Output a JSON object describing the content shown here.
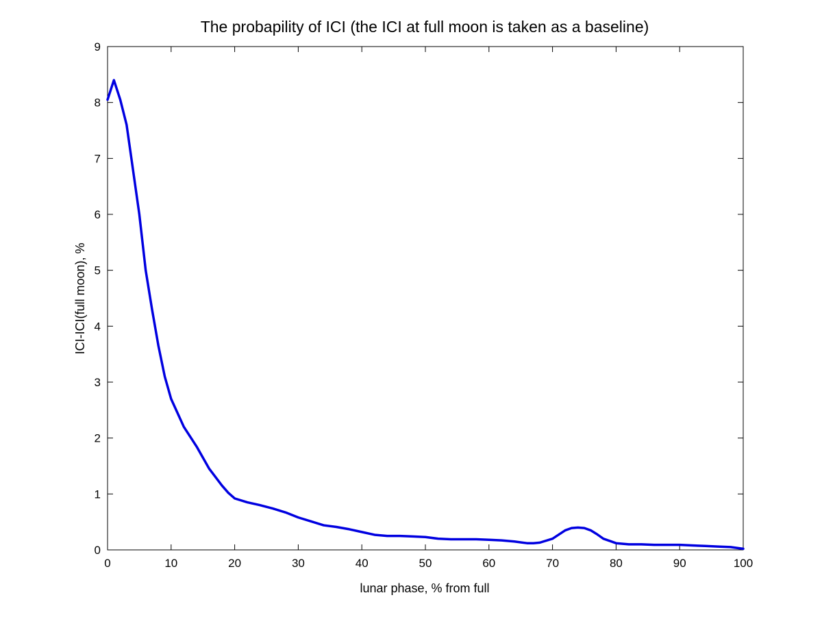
{
  "chart_data": {
    "type": "line",
    "title": "The probapility of ICI (the ICI at full moon is taken as a baseline)",
    "xlabel": "lunar phase, % from full",
    "ylabel": "ICI-ICI(full moon), %",
    "xlim": [
      0,
      100
    ],
    "ylim": [
      0,
      9
    ],
    "xticks": [
      0,
      10,
      20,
      30,
      40,
      50,
      60,
      70,
      80,
      90,
      100
    ],
    "yticks": [
      0,
      1,
      2,
      3,
      4,
      5,
      6,
      7,
      8,
      9
    ],
    "grid": false,
    "legend": "none",
    "series": [
      {
        "color": "#0000e0",
        "x": [
          0,
          1,
          2,
          3,
          4,
          5,
          6,
          7,
          8,
          9,
          10,
          12,
          14,
          16,
          18,
          19,
          20,
          22,
          24,
          26,
          28,
          30,
          32,
          34,
          36,
          38,
          40,
          42,
          44,
          46,
          48,
          50,
          52,
          54,
          56,
          58,
          60,
          62,
          64,
          66,
          67,
          68,
          70,
          72,
          73,
          74,
          75,
          76,
          77,
          78,
          80,
          82,
          84,
          86,
          88,
          90,
          92,
          94,
          96,
          98,
          100
        ],
        "y": [
          8.05,
          8.4,
          8.05,
          7.6,
          6.8,
          6.0,
          5.0,
          4.3,
          3.65,
          3.1,
          2.7,
          2.2,
          1.85,
          1.45,
          1.15,
          1.02,
          0.92,
          0.85,
          0.8,
          0.74,
          0.67,
          0.58,
          0.51,
          0.44,
          0.41,
          0.37,
          0.32,
          0.27,
          0.25,
          0.25,
          0.24,
          0.23,
          0.2,
          0.19,
          0.19,
          0.19,
          0.18,
          0.17,
          0.15,
          0.12,
          0.12,
          0.13,
          0.2,
          0.35,
          0.39,
          0.4,
          0.39,
          0.35,
          0.28,
          0.2,
          0.12,
          0.1,
          0.1,
          0.09,
          0.09,
          0.09,
          0.08,
          0.07,
          0.06,
          0.05,
          0.02
        ]
      }
    ]
  }
}
